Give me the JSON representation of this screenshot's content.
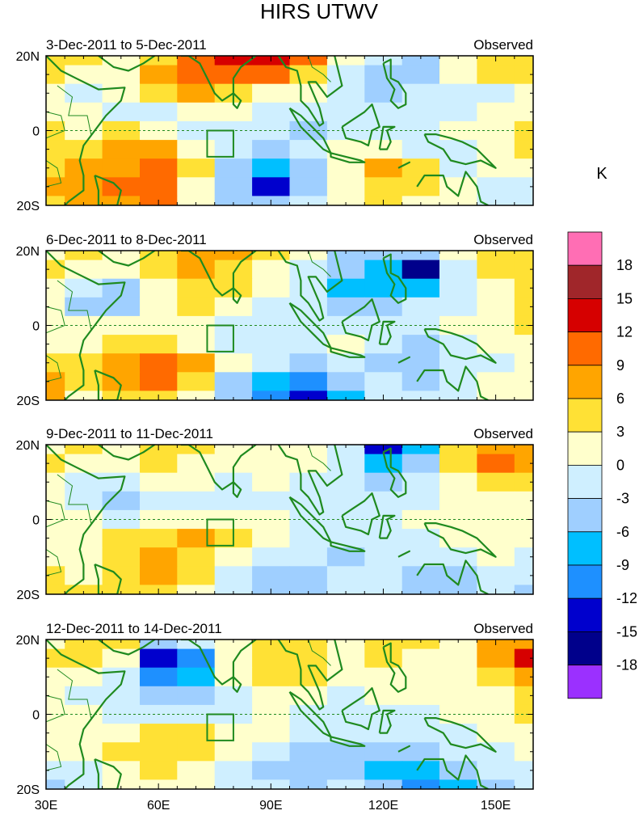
{
  "chart_data": {
    "type": "heatmap",
    "title": "HIRS UTWV",
    "units": "K",
    "x_range": [
      30,
      160
    ],
    "y_range": [
      -20,
      20
    ],
    "x_ticks": [
      {
        "value": 30,
        "label": "30E"
      },
      {
        "value": 60,
        "label": "60E"
      },
      {
        "value": 90,
        "label": "90E"
      },
      {
        "value": 120,
        "label": "120E"
      },
      {
        "value": 150,
        "label": "150E"
      }
    ],
    "y_ticks": [
      {
        "value": 20,
        "label": "20N"
      },
      {
        "value": 0,
        "label": "0"
      },
      {
        "value": -20,
        "label": "20S"
      }
    ],
    "grid_lon": [
      30,
      40,
      50,
      60,
      70,
      80,
      90,
      100,
      110,
      120,
      130,
      140,
      150,
      160
    ],
    "grid_lat": [
      20,
      15,
      10,
      5,
      0,
      -5,
      -10,
      -15,
      -20
    ],
    "colorbar": {
      "colors": [
        "#9b30ff",
        "#00008b",
        "#0000cd",
        "#1e90ff",
        "#00bfff",
        "#9fcfff",
        "#cfefff",
        "#ffffcc",
        "#ffe135",
        "#ffa500",
        "#ff6a00",
        "#d60000",
        "#a0262a",
        "#ff6eb4"
      ],
      "labels": [
        "-18",
        "-15",
        "-12",
        "-9",
        "-6",
        "-3",
        "0",
        "3",
        "6",
        "9",
        "12",
        "15",
        "18"
      ]
    },
    "box_region": {
      "lon": [
        73,
        80
      ],
      "lat": [
        -7,
        0
      ]
    },
    "panels": [
      {
        "period": "3-Dec-2011 to 5-Dec-2011",
        "label": "Observed",
        "values": [
          [
            3,
            4,
            2,
            5,
            9,
            12,
            14,
            10,
            1,
            -3,
            -6,
            1,
            3,
            4
          ],
          [
            4,
            2,
            1,
            6,
            10,
            11,
            9,
            5,
            -1,
            -6,
            -6,
            0,
            3,
            5
          ],
          [
            1,
            -1,
            0,
            3,
            6,
            4,
            2,
            0,
            -3,
            -4,
            -3,
            -2,
            -1,
            1
          ],
          [
            2,
            0,
            -1,
            -2,
            1,
            1,
            -1,
            -2,
            -3,
            -3,
            -2,
            -1,
            0,
            2
          ],
          [
            3,
            1,
            3,
            2,
            -1,
            -2,
            -3,
            -4,
            -2,
            -2,
            -1,
            0,
            2,
            5
          ],
          [
            4,
            5,
            7,
            6,
            0,
            -3,
            -4,
            -2,
            0,
            1,
            -1,
            -2,
            1,
            3
          ],
          [
            5,
            6,
            8,
            9,
            3,
            -4,
            -9,
            -5,
            1,
            6,
            3,
            -1,
            2,
            1
          ],
          [
            6,
            7,
            9,
            10,
            2,
            -6,
            -14,
            -4,
            2,
            5,
            4,
            0,
            -1,
            -2
          ],
          [
            5,
            6,
            8,
            9,
            1,
            -4,
            -6,
            -2,
            1,
            3,
            2,
            1,
            -2,
            -2
          ]
        ]
      },
      {
        "period": "6-Dec-2011 to 8-Dec-2011",
        "label": "Observed",
        "values": [
          [
            2,
            3,
            2,
            5,
            7,
            6,
            3,
            1,
            -4,
            -5,
            -6,
            0,
            3,
            4
          ],
          [
            3,
            2,
            1,
            5,
            7,
            5,
            2,
            -1,
            -6,
            -9,
            -16,
            -3,
            3,
            5
          ],
          [
            1,
            -2,
            -5,
            1,
            5,
            3,
            1,
            -2,
            -7,
            -8,
            -9,
            -2,
            1,
            3
          ],
          [
            2,
            -4,
            -6,
            0,
            3,
            1,
            -1,
            -3,
            -4,
            -4,
            -3,
            -1,
            1,
            3
          ],
          [
            2,
            1,
            1,
            2,
            0,
            -1,
            -3,
            -3,
            -2,
            -2,
            -1,
            0,
            2,
            5
          ],
          [
            1,
            2,
            5,
            4,
            1,
            -2,
            -2,
            -1,
            0,
            -3,
            -4,
            -2,
            0,
            2
          ],
          [
            3,
            4,
            7,
            10,
            6,
            2,
            -3,
            -6,
            -2,
            -4,
            -6,
            -3,
            -1,
            1
          ],
          [
            7,
            3,
            6,
            9,
            4,
            -4,
            -8,
            -10,
            -5,
            -3,
            -4,
            -2,
            1,
            2
          ],
          [
            8,
            2,
            4,
            5,
            2,
            -6,
            -10,
            -14,
            -7,
            -2,
            -2,
            -1,
            0,
            1
          ]
        ]
      },
      {
        "period": "9-Dec-2011 to 11-Dec-2011",
        "label": "Observed",
        "values": [
          [
            2,
            3,
            2,
            4,
            3,
            1,
            2,
            1,
            -1,
            -13,
            -9,
            3,
            8,
            7
          ],
          [
            3,
            2,
            1,
            3,
            2,
            0,
            1,
            0,
            -2,
            -8,
            -6,
            4,
            9,
            7
          ],
          [
            1,
            -1,
            -3,
            0,
            1,
            -1,
            0,
            -1,
            -3,
            -4,
            -3,
            1,
            4,
            3
          ],
          [
            0,
            -2,
            -4,
            -1,
            -2,
            -3,
            -1,
            -2,
            -2,
            -2,
            -1,
            0,
            2,
            1
          ],
          [
            1,
            0,
            -1,
            1,
            2,
            1,
            0,
            -1,
            -1,
            -1,
            0,
            1,
            1,
            2
          ],
          [
            2,
            1,
            3,
            5,
            6,
            4,
            1,
            -2,
            -3,
            -2,
            -1,
            0,
            1,
            2
          ],
          [
            1,
            0,
            4,
            7,
            5,
            2,
            -2,
            -3,
            -5,
            -3,
            -2,
            -1,
            0,
            -1
          ],
          [
            3,
            2,
            5,
            6,
            3,
            -1,
            -4,
            -6,
            -3,
            -2,
            -4,
            -5,
            -2,
            -3
          ],
          [
            5,
            3,
            4,
            4,
            1,
            -3,
            -5,
            -4,
            -2,
            -3,
            -6,
            -6,
            -3,
            -4
          ]
        ]
      },
      {
        "period": "12-Dec-2011 to 14-Dec-2011",
        "label": "Observed",
        "values": [
          [
            2,
            4,
            3,
            -6,
            -3,
            2,
            4,
            3,
            1,
            4,
            3,
            2,
            6,
            8
          ],
          [
            3,
            3,
            1,
            -14,
            -12,
            1,
            5,
            4,
            1,
            3,
            2,
            2,
            8,
            12
          ],
          [
            1,
            0,
            -3,
            -12,
            -9,
            0,
            4,
            3,
            0,
            1,
            1,
            1,
            5,
            8
          ],
          [
            0,
            -1,
            -3,
            -6,
            -4,
            -1,
            2,
            1,
            -1,
            0,
            0,
            0,
            2,
            4
          ],
          [
            1,
            0,
            -1,
            -2,
            -1,
            -1,
            0,
            -1,
            -2,
            -2,
            -1,
            1,
            2,
            3
          ],
          [
            2,
            1,
            2,
            3,
            4,
            2,
            0,
            -2,
            -3,
            -3,
            -2,
            -1,
            1,
            2
          ],
          [
            1,
            0,
            3,
            5,
            4,
            1,
            -3,
            -5,
            -6,
            -5,
            -5,
            -3,
            -1,
            0
          ],
          [
            -2,
            -1,
            2,
            3,
            1,
            -1,
            -4,
            -6,
            -4,
            -7,
            -8,
            -6,
            -3,
            -1
          ],
          [
            -4,
            -2,
            1,
            2,
            0,
            -2,
            -3,
            -4,
            -3,
            -6,
            -10,
            -7,
            -4,
            -2
          ]
        ]
      }
    ]
  }
}
